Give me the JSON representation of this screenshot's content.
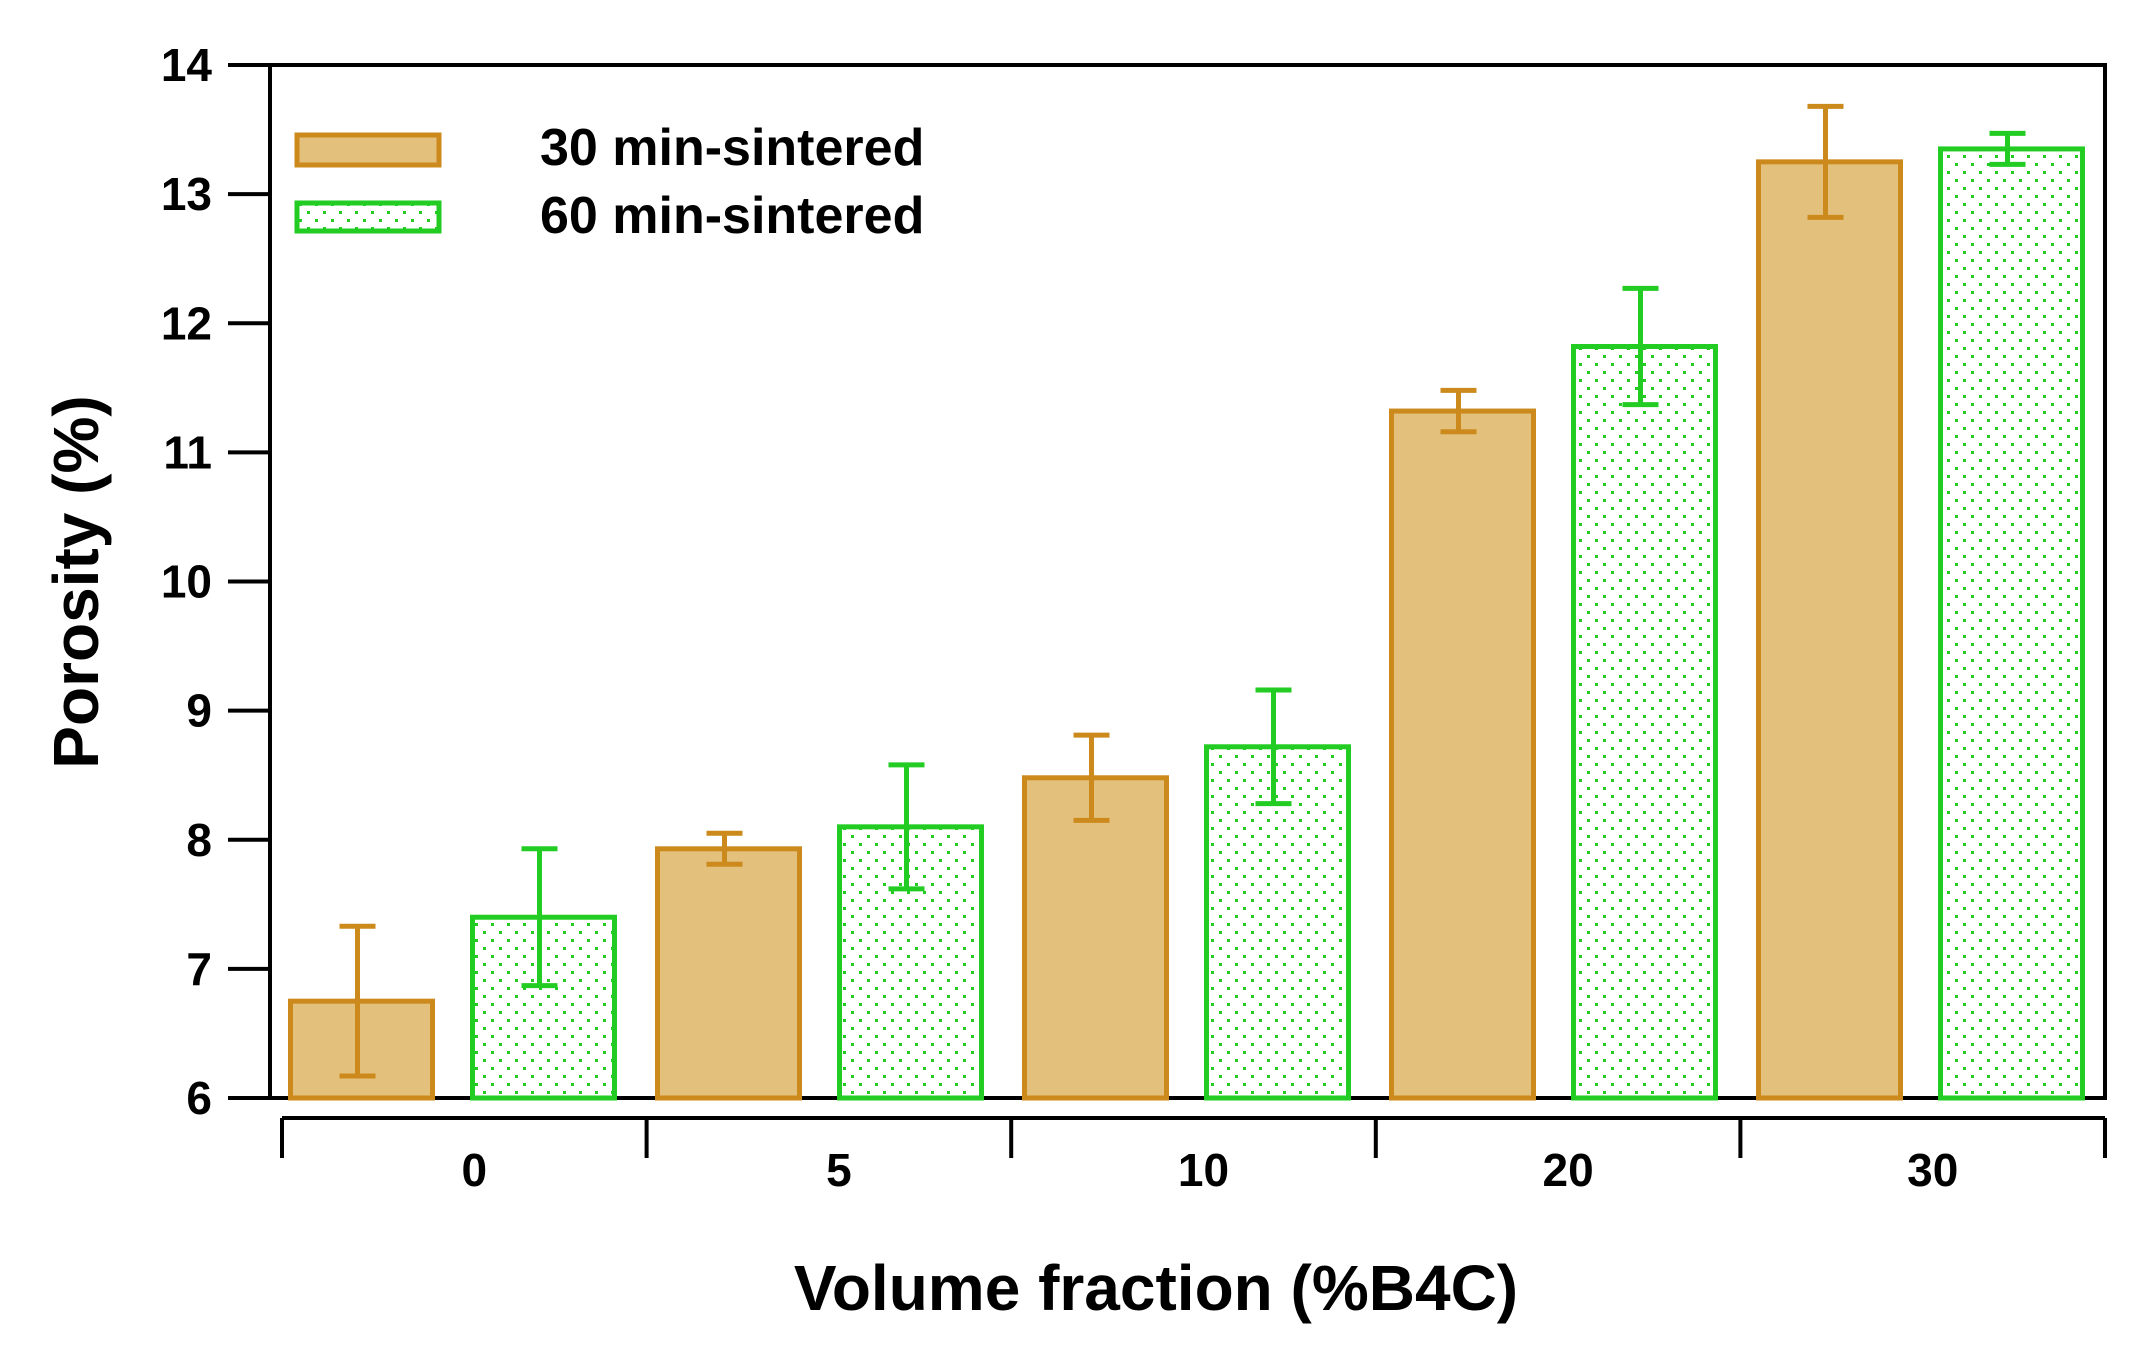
{
  "colors": {
    "series1_fill": "#e3c07b",
    "series1_stroke": "#cc8a1c",
    "series2_stroke": "#22cc22",
    "series2_dots": "#22cc22",
    "axis": "#000000"
  },
  "chart_data": {
    "type": "bar",
    "title": "",
    "xlabel": "Volume fraction (%B4C)",
    "ylabel": "Porosity (%)",
    "ylim": [
      6,
      14
    ],
    "yticks": [
      6,
      7,
      8,
      9,
      10,
      11,
      12,
      13,
      14
    ],
    "categories": [
      "0",
      "5",
      "10",
      "20",
      "30"
    ],
    "legend_position": "top-left",
    "series": [
      {
        "name": "30 min-sintered",
        "values": [
          6.75,
          7.93,
          8.48,
          11.32,
          13.25
        ],
        "errors": [
          0.58,
          0.12,
          0.33,
          0.16,
          0.43
        ]
      },
      {
        "name": "60 min-sintered",
        "values": [
          7.4,
          8.1,
          8.72,
          11.82,
          13.35
        ],
        "errors": [
          0.53,
          0.48,
          0.44,
          0.45,
          0.12
        ]
      }
    ]
  }
}
